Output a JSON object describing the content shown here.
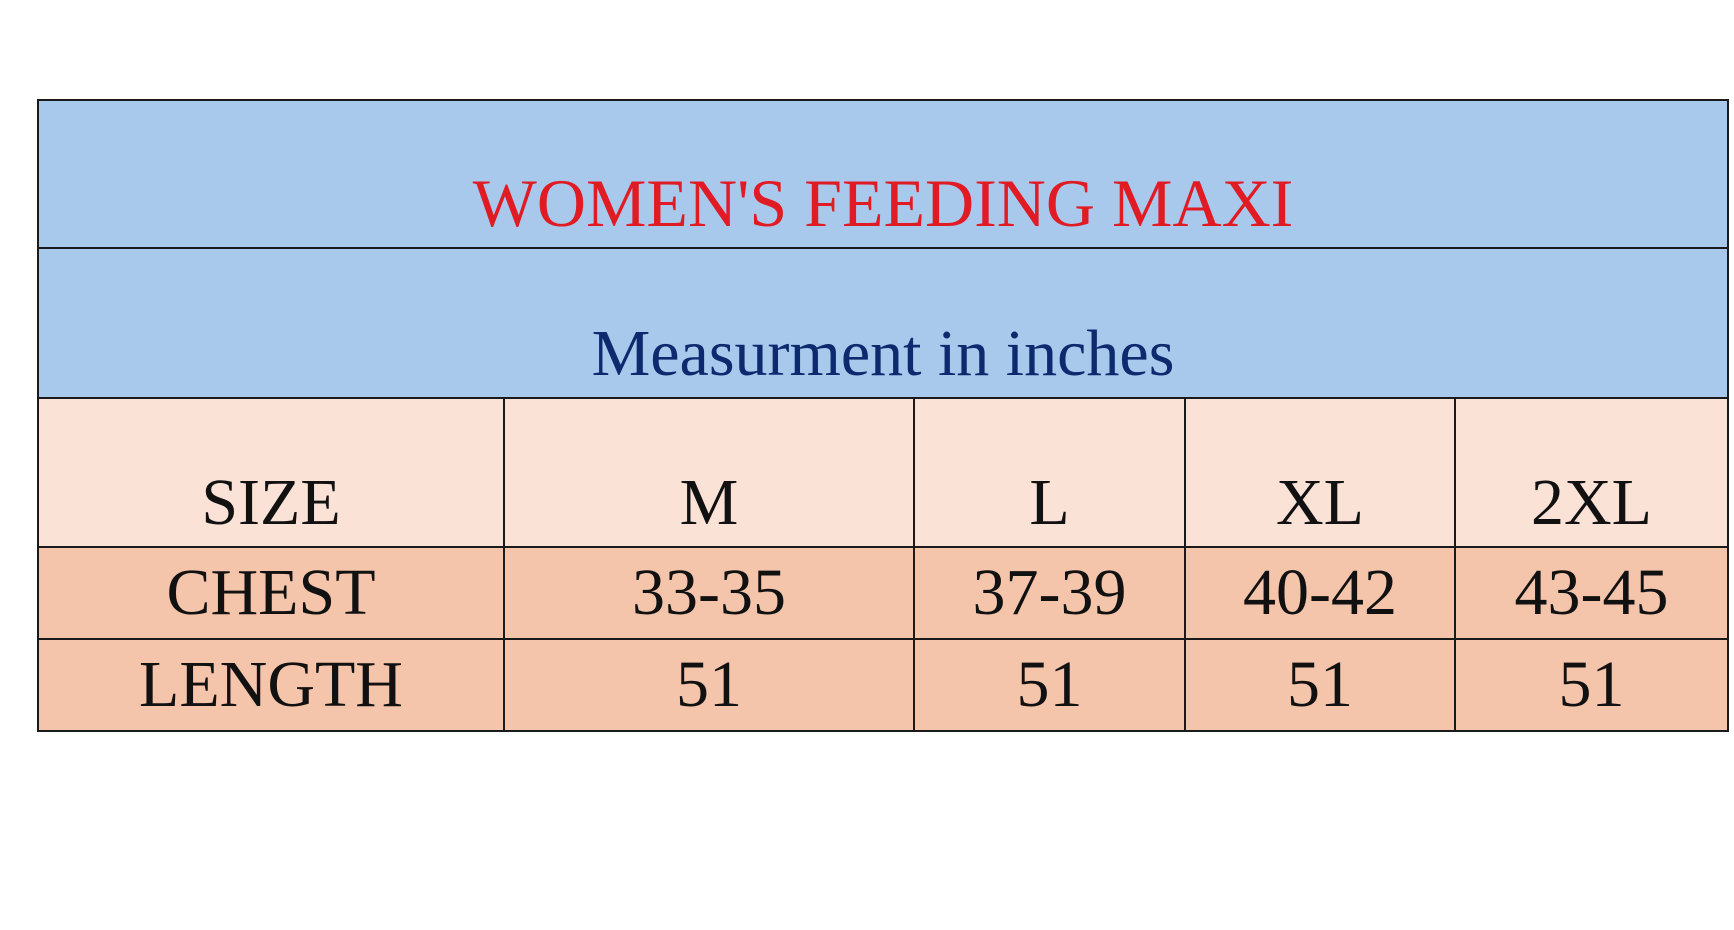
{
  "title": "WOMEN'S FEEDING MAXI",
  "subtitle": "Measurment in inches",
  "colors": {
    "title_text": "#e01b24",
    "subtitle_text": "#0d2a6e",
    "header_bg": "#a9c9ec",
    "size_row_bg": "#fbe2d7",
    "data_row_bg": "#f4c4ab"
  },
  "table": {
    "size_label": "SIZE",
    "sizes": [
      "M",
      "L",
      "XL",
      "2XL"
    ],
    "rows": [
      {
        "label": "CHEST",
        "values": [
          "33-35",
          "37-39",
          "40-42",
          "43-45"
        ]
      },
      {
        "label": "LENGTH",
        "values": [
          "51",
          "51",
          "51",
          "51"
        ]
      }
    ]
  }
}
